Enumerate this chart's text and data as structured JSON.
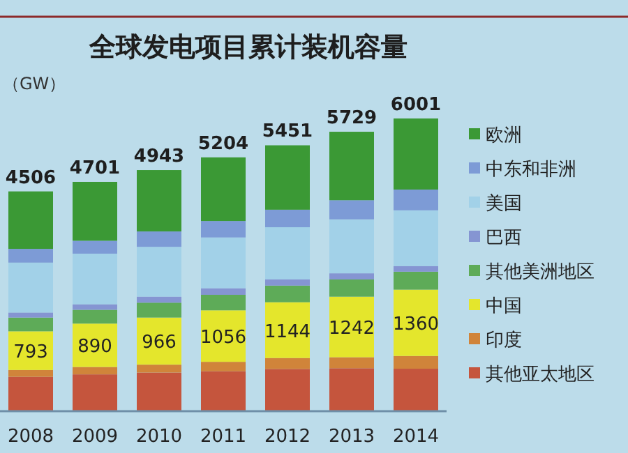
{
  "chart_data": {
    "type": "bar",
    "stacked": true,
    "title": "全球发电项目累计装机容量",
    "ylabel": "（GW）",
    "categories": [
      "2008",
      "2009",
      "2010",
      "2011",
      "2012",
      "2013",
      "2014"
    ],
    "series": [
      {
        "name": "其他亚太地区",
        "color": "#c5553d",
        "values": [
          704,
          755,
          792,
          819,
          866,
          881,
          871
        ]
      },
      {
        "name": "印度",
        "color": "#d0843a",
        "values": [
          141,
          151,
          162,
          193,
          224,
          225,
          261
        ]
      },
      {
        "name": "中国",
        "color": "#e4e62c",
        "values": [
          793,
          890,
          966,
          1056,
          1144,
          1242,
          1360
        ],
        "value_labels": [
          "793",
          "890",
          "966",
          "1056",
          "1144",
          "1242",
          "1360"
        ]
      },
      {
        "name": "其他美洲地区",
        "color": "#5eab58",
        "values": [
          282,
          283,
          305,
          318,
          341,
          352,
          368
        ]
      },
      {
        "name": "巴西",
        "color": "#8595d2",
        "values": [
          103,
          113,
          124,
          135,
          126,
          127,
          116
        ]
      },
      {
        "name": "美国",
        "color": "#a2d1e8",
        "values": [
          1023,
          1038,
          1021,
          1041,
          1070,
          1106,
          1142
        ]
      },
      {
        "name": "中东和非洲",
        "color": "#7d9bd6",
        "values": [
          282,
          264,
          315,
          337,
          360,
          392,
          426
        ]
      },
      {
        "name": "欧洲",
        "color": "#3b9935",
        "values": [
          1178,
          1207,
          1258,
          1305,
          1320,
          1404,
          1457
        ]
      }
    ],
    "totals": [
      "4506",
      "4701",
      "4943",
      "5204",
      "5451",
      "5729",
      "6001"
    ],
    "legend": "right"
  }
}
